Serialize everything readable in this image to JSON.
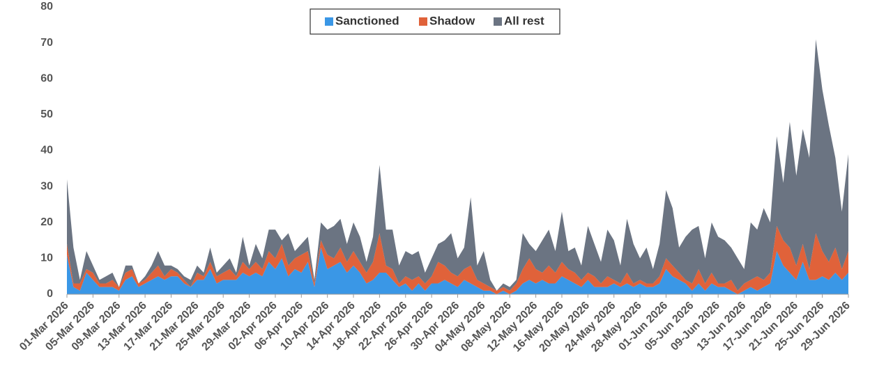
{
  "chart_data": {
    "type": "stacked_area",
    "categories": [
      "01-Mar 2026",
      null,
      null,
      null,
      "05-Mar 2026",
      null,
      null,
      null,
      "09-Mar 2026",
      null,
      null,
      null,
      "13-Mar 2026",
      null,
      null,
      null,
      "17-Mar 2026",
      null,
      null,
      null,
      "21-Mar 2026",
      null,
      null,
      null,
      "25-Mar 2026",
      null,
      null,
      null,
      "29-Mar 2026",
      null,
      null,
      null,
      "02-Apr 2026",
      null,
      null,
      null,
      "06-Apr 2026",
      null,
      null,
      null,
      "10-Apr 2026",
      null,
      null,
      null,
      "14-Apr 2026",
      null,
      null,
      null,
      "18-Apr 2026",
      null,
      null,
      null,
      "22-Apr 2026",
      null,
      null,
      null,
      "26-Apr 2026",
      null,
      null,
      null,
      "30-Apr 2026",
      null,
      null,
      null,
      "04-May 2026",
      null,
      null,
      null,
      "08-May 2026",
      null,
      null,
      null,
      "12-May 2026",
      null,
      null,
      null,
      "16-May 2026",
      null,
      null,
      null,
      "20-May 2026",
      null,
      null,
      null,
      "24-May 2026",
      null,
      null,
      null,
      "28-May 2026",
      null,
      null,
      null,
      "01-Jun 2026",
      null,
      null,
      null,
      "05-Jun 2026",
      null,
      null,
      null,
      "09-Jun 2026",
      null,
      null,
      null,
      "13-Jun 2026",
      null,
      null,
      null,
      "17-Jun 2026",
      null,
      null,
      null,
      "21-Jun 2026",
      null,
      null,
      null,
      "25-Jun 2026",
      null,
      null,
      null,
      "29-Jun 2026"
    ],
    "series": [
      {
        "name": "Sanctioned",
        "color": "#3a97e6",
        "values": [
          11,
          2,
          1,
          6,
          4,
          2,
          2,
          2,
          1,
          4,
          5,
          2,
          3,
          4,
          5,
          4,
          5,
          5,
          3,
          2,
          4,
          4,
          7,
          3,
          4,
          4,
          4,
          6,
          5,
          6,
          5,
          9,
          7,
          10,
          5,
          7,
          6,
          9,
          2,
          13,
          7,
          8,
          9,
          6,
          8,
          6,
          3,
          4,
          6,
          6,
          4,
          2,
          3,
          1,
          3,
          1,
          3,
          3,
          4,
          3,
          2,
          4,
          3,
          2,
          1,
          1,
          0,
          1,
          0,
          1,
          3,
          4,
          3,
          4,
          3,
          3,
          5,
          4,
          3,
          2,
          4,
          2,
          2,
          2,
          3,
          2,
          3,
          2,
          3,
          2,
          2,
          3,
          7,
          5,
          4,
          3,
          1,
          3,
          1,
          3,
          2,
          2,
          1,
          0,
          1,
          2,
          1,
          2,
          3,
          12,
          8,
          6,
          4,
          9,
          4,
          4,
          5,
          4,
          6,
          4,
          6
        ]
      },
      {
        "name": "Shadow",
        "color": "#e0623a",
        "values": [
          3,
          1,
          2,
          1,
          2,
          1,
          1,
          2,
          1,
          2,
          2,
          1,
          1,
          2,
          3,
          1,
          2,
          1,
          1,
          0,
          2,
          1,
          2,
          2,
          2,
          3,
          1,
          3,
          2,
          3,
          2,
          3,
          3,
          4,
          3,
          3,
          5,
          3,
          1,
          2,
          4,
          2,
          4,
          3,
          4,
          3,
          3,
          5,
          11,
          2,
          3,
          1,
          2,
          3,
          2,
          2,
          2,
          6,
          4,
          3,
          3,
          3,
          5,
          2,
          2,
          1,
          1,
          1,
          1,
          2,
          4,
          6,
          4,
          2,
          5,
          3,
          4,
          3,
          3,
          2,
          2,
          3,
          1,
          3,
          1,
          1,
          3,
          1,
          1,
          1,
          1,
          2,
          3,
          3,
          2,
          1,
          2,
          4,
          2,
          3,
          1,
          1,
          3,
          1,
          2,
          2,
          4,
          2,
          3,
          7,
          7,
          7,
          4,
          5,
          3,
          13,
          7,
          5,
          7,
          3,
          6
        ]
      },
      {
        "name": "All rest",
        "color": "#6b7482",
        "values": [
          18,
          10,
          1,
          5,
          2,
          1,
          2,
          2,
          0,
          2,
          1,
          0,
          1,
          2,
          4,
          3,
          1,
          1,
          1,
          2,
          2,
          1,
          4,
          1,
          2,
          3,
          1,
          7,
          1,
          5,
          3,
          6,
          8,
          1,
          9,
          2,
          3,
          4,
          1,
          5,
          7,
          9,
          8,
          5,
          8,
          7,
          3,
          7,
          19,
          10,
          11,
          5,
          7,
          7,
          7,
          3,
          5,
          5,
          7,
          11,
          5,
          6,
          19,
          4,
          9,
          2,
          0,
          1,
          1,
          1,
          10,
          4,
          5,
          9,
          10,
          6,
          14,
          5,
          7,
          4,
          13,
          9,
          6,
          13,
          11,
          5,
          15,
          11,
          6,
          10,
          4,
          9,
          19,
          16,
          7,
          12,
          15,
          12,
          7,
          14,
          13,
          12,
          9,
          9,
          4,
          16,
          13,
          20,
          14,
          25,
          16,
          35,
          25,
          32,
          31,
          54,
          45,
          38,
          25,
          16,
          27
        ]
      }
    ],
    "ylim": [
      0,
      80
    ],
    "yticks": [
      0,
      10,
      20,
      30,
      40,
      50,
      60,
      70,
      80
    ],
    "grid": false,
    "legend": "top"
  }
}
